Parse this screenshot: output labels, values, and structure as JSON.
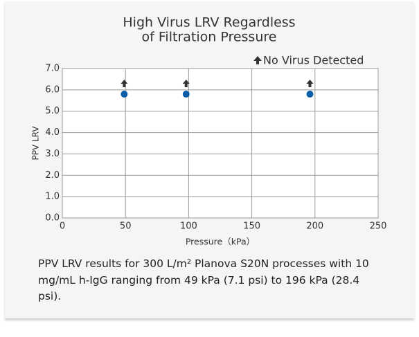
{
  "chart_data": {
    "type": "scatter",
    "title": [
      "High Virus LRV Regardless",
      "of Filtration Pressure"
    ],
    "annotation": "No Virus Detected",
    "xlabel": "Pressure（kPa）",
    "ylabel": "PPV LRV",
    "x": [
      49,
      98,
      196
    ],
    "series": [
      {
        "color": "#0a5ea8",
        "values": [
          5.8,
          5.8,
          5.8
        ]
      }
    ],
    "xlim": [
      0,
      250
    ],
    "xticks": [
      0,
      50,
      100,
      150,
      200,
      250
    ],
    "ylim": [
      0,
      7
    ],
    "yticks": [
      {
        "value": 0,
        "label": "0.0"
      },
      {
        "value": 1,
        "label": "1.0"
      },
      {
        "value": 2,
        "label": "2.0"
      },
      {
        "value": 3,
        "label": "3.0"
      },
      {
        "value": 4,
        "label": "4.0"
      },
      {
        "value": 5,
        "label": "5.0"
      },
      {
        "value": 6,
        "label": "6.0"
      },
      {
        "value": 7,
        "label": "7.0"
      }
    ],
    "grid": true,
    "caption": "PPV LRV results for 300 L/m² Planova S20N processes with 10 mg/mL h-IgG ranging from 49 kPa (7.1 psi) to 196 kPa (28.4 psi)."
  }
}
